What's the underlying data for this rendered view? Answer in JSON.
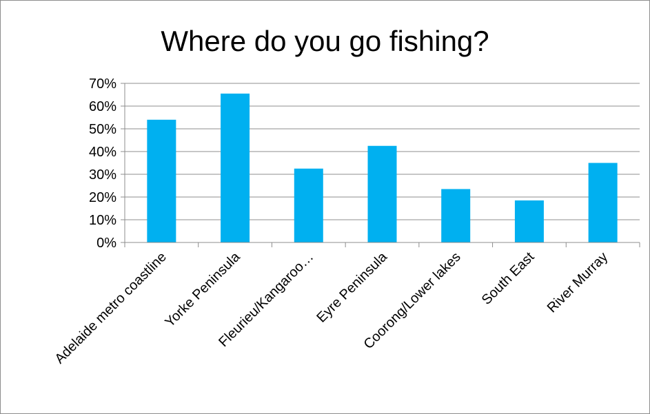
{
  "chart_data": {
    "type": "bar",
    "title": "Where do you go fishing?",
    "categories": [
      "Adelaide metro coastline",
      "Yorke Peninsula",
      "Fleurieu/Kangaroo…",
      "Eyre Peninsula",
      "Coorong/Lower lakes",
      "South East",
      "River Murray"
    ],
    "values": [
      54,
      65.5,
      32.5,
      42.5,
      23.5,
      18.5,
      35
    ],
    "ylim": [
      0,
      70
    ],
    "yticks": [
      "0%",
      "10%",
      "20%",
      "30%",
      "40%",
      "50%",
      "60%",
      "70%"
    ],
    "bar_color": "#00b0f0",
    "grid": true,
    "legend": "none"
  }
}
